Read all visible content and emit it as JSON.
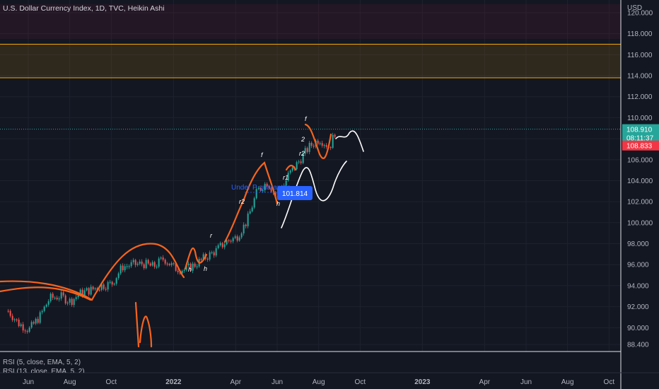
{
  "header": {
    "title": "U.S. Dollar Currency Index, 1D, TVC, Heikin Ashi"
  },
  "indicators": [
    "RSI (5, close, EMA, 5, 2)",
    "RSI (13, close, EMA, 5, 2)"
  ],
  "chart_data": {
    "type": "line",
    "chart_style": "Heikin Ashi candles",
    "currency_label": "USD",
    "y_ticks": [
      "120.000",
      "118.000",
      "116.000",
      "114.000",
      "112.000",
      "110.000",
      "108.000",
      "106.000",
      "104.000",
      "102.000",
      "100.000",
      "98.000",
      "96.000",
      "94.000",
      "92.000",
      "90.000",
      "88.400"
    ],
    "y_tick_values": [
      120,
      118,
      116,
      114,
      112,
      110,
      108,
      106,
      104,
      102,
      100,
      98,
      96,
      94,
      92,
      90,
      88.4
    ],
    "ylim": [
      87.8,
      120.8
    ],
    "x_ticks": [
      "Jun",
      "Aug",
      "Oct",
      "2022",
      "Apr",
      "Jun",
      "Aug",
      "Oct",
      "2023",
      "Apr",
      "Jun",
      "Aug",
      "Oct"
    ],
    "x_tick_months": [
      5,
      7,
      9,
      12,
      15,
      17,
      19,
      21,
      24,
      27,
      29,
      31,
      33
    ],
    "month_zero": "2021-01",
    "series": [
      {
        "name": "",
        "x": [
          4,
          4.5,
          5,
          5.5,
          6,
          6.5,
          7,
          7.5,
          8,
          8.5,
          9,
          9.5,
          10,
          10.5,
          11,
          11.5,
          12,
          12.5,
          13,
          13.5,
          14,
          14.5,
          15,
          15.5,
          16,
          16.5,
          17,
          17.5,
          18,
          18.5,
          19,
          19.5,
          19.8
        ],
        "y": [
          91.6,
          90.4,
          89.8,
          91.0,
          92.8,
          93.0,
          92.5,
          93.3,
          93.6,
          94.0,
          94.2,
          95.8,
          96.0,
          96.1,
          95.8,
          96.6,
          95.7,
          95.5,
          96.0,
          96.7,
          97.3,
          98.2,
          98.6,
          100.1,
          103.0,
          103.9,
          102.2,
          104.5,
          105.8,
          107.2,
          108.0,
          107.2,
          108.9
        ]
      }
    ],
    "last_price": "108.910",
    "countdown": "08:11:37",
    "prev_price": "108.833",
    "zones": [
      {
        "label": "",
        "from": 117.0,
        "to": 113.8,
        "color": "#f7a600"
      },
      {
        "label": "",
        "from": 120.8,
        "to": 117.5,
        "color": "#8e1b3a"
      }
    ],
    "annotations": [
      {
        "text": "Under P guarantee",
        "color": "#2962ff"
      },
      {
        "text": "101.814",
        "type": "price-badge",
        "color": "#2962ff"
      },
      {
        "text": "f"
      },
      {
        "text": "r2"
      },
      {
        "text": "h"
      },
      {
        "text": "r1"
      },
      {
        "text": "f"
      },
      {
        "text": "r2"
      },
      {
        "text": "h"
      },
      {
        "text": "h"
      },
      {
        "text": "r"
      },
      {
        "text": "2"
      }
    ],
    "grid": true,
    "legend": "none"
  }
}
